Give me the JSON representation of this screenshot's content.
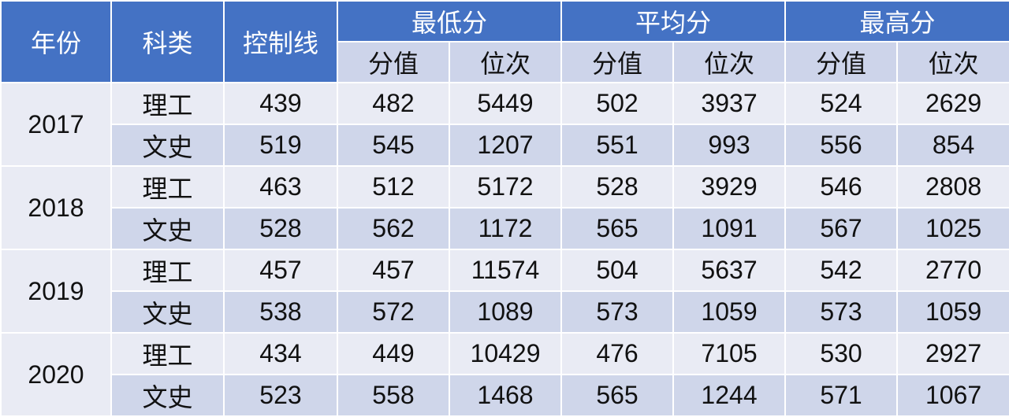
{
  "headers": {
    "year": "年份",
    "category": "科类",
    "control_line": "控制线",
    "min": "最低分",
    "avg": "平均分",
    "max": "最高分",
    "score": "分值",
    "rank": "位次"
  },
  "rows": [
    {
      "year": "2017",
      "category": "理工",
      "control": "439",
      "min_score": "482",
      "min_rank": "5449",
      "avg_score": "502",
      "avg_rank": "3937",
      "max_score": "524",
      "max_rank": "2629"
    },
    {
      "year": "2017",
      "category": "文史",
      "control": "519",
      "min_score": "545",
      "min_rank": "1207",
      "avg_score": "551",
      "avg_rank": "993",
      "max_score": "556",
      "max_rank": "854"
    },
    {
      "year": "2018",
      "category": "理工",
      "control": "463",
      "min_score": "512",
      "min_rank": "5172",
      "avg_score": "528",
      "avg_rank": "3929",
      "max_score": "546",
      "max_rank": "2808"
    },
    {
      "year": "2018",
      "category": "文史",
      "control": "528",
      "min_score": "562",
      "min_rank": "1172",
      "avg_score": "565",
      "avg_rank": "1091",
      "max_score": "567",
      "max_rank": "1025"
    },
    {
      "year": "2019",
      "category": "理工",
      "control": "457",
      "min_score": "457",
      "min_rank": "11574",
      "avg_score": "504",
      "avg_rank": "5637",
      "max_score": "542",
      "max_rank": "2770"
    },
    {
      "year": "2019",
      "category": "文史",
      "control": "538",
      "min_score": "572",
      "min_rank": "1089",
      "avg_score": "573",
      "avg_rank": "1059",
      "max_score": "573",
      "max_rank": "1059"
    },
    {
      "year": "2020",
      "category": "理工",
      "control": "434",
      "min_score": "449",
      "min_rank": "10429",
      "avg_score": "476",
      "avg_rank": "7105",
      "max_score": "530",
      "max_rank": "2927"
    },
    {
      "year": "2020",
      "category": "文史",
      "control": "523",
      "min_score": "558",
      "min_rank": "1468",
      "avg_score": "565",
      "avg_rank": "1244",
      "max_score": "571",
      "max_rank": "1067"
    }
  ],
  "colors": {
    "header": "#4472c4",
    "subheader": "#cdd4ea",
    "row_light": "#e9ebf4",
    "row_dark": "#cfd6ea"
  }
}
